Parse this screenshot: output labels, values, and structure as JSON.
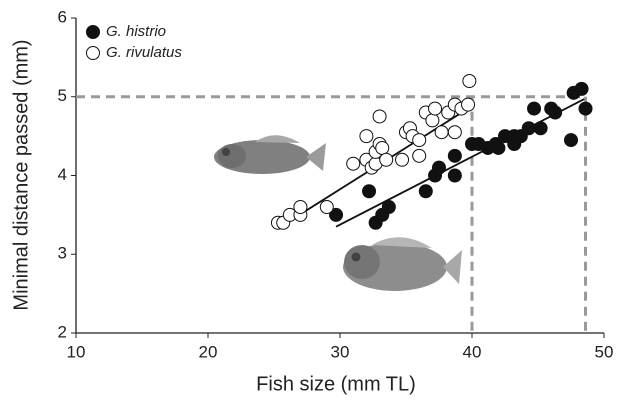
{
  "chart_data": {
    "type": "scatter",
    "xlabel": "Fish size (mm TL)",
    "ylabel": "Minimal distance passed (mm)",
    "xlim": [
      10,
      50
    ],
    "ylim": [
      2,
      6
    ],
    "xticks": [
      10,
      20,
      30,
      40,
      50
    ],
    "yticks": [
      2,
      3,
      4,
      5,
      6
    ],
    "grid": false,
    "legend": "upper left",
    "series": [
      {
        "name": "G. histrio",
        "color": "#111111",
        "filled": true,
        "x": [
          29.7,
          32.2,
          32.7,
          33.2,
          33.7,
          36.5,
          37.2,
          37.5,
          38.7,
          38.7,
          40.0,
          40.5,
          41.2,
          41.8,
          42.0,
          42.5,
          43.2,
          43.2,
          43.7,
          44.3,
          44.7,
          45.2,
          46.0,
          46.3,
          47.5,
          47.7,
          48.3,
          48.6
        ],
        "values": [
          3.5,
          3.8,
          3.4,
          3.5,
          3.6,
          3.8,
          4.0,
          4.1,
          4.0,
          4.25,
          4.4,
          4.4,
          4.35,
          4.4,
          4.35,
          4.5,
          4.4,
          4.5,
          4.5,
          4.6,
          4.85,
          4.6,
          4.85,
          4.8,
          4.45,
          5.05,
          5.1,
          4.85
        ],
        "fit": {
          "x": [
            29.7,
            48.5
          ],
          "y": [
            3.35,
            4.97
          ]
        }
      },
      {
        "name": "G. rivulatus",
        "color": "#111111",
        "filled": false,
        "x": [
          25.3,
          25.7,
          26.2,
          27.0,
          27.0,
          29.0,
          31.0,
          32.0,
          32.0,
          32.4,
          32.7,
          32.7,
          33.0,
          33.2,
          33.5,
          33.0,
          34.7,
          35.0,
          35.3,
          35.5,
          36.0,
          36.0,
          36.5,
          37.0,
          37.2,
          37.7,
          38.2,
          38.7,
          38.7,
          39.2,
          39.7,
          39.8
        ],
        "values": [
          3.4,
          3.4,
          3.5,
          3.5,
          3.6,
          3.6,
          4.15,
          4.5,
          4.2,
          4.1,
          4.15,
          4.3,
          4.4,
          4.35,
          4.2,
          4.75,
          4.2,
          4.55,
          4.6,
          4.5,
          4.45,
          4.25,
          4.8,
          4.7,
          4.85,
          4.55,
          4.8,
          4.9,
          4.55,
          4.85,
          4.9,
          5.2
        ],
        "fit": {
          "x": [
            25.5,
            39.7
          ],
          "y": [
            3.35,
            4.85
          ]
        }
      }
    ],
    "reference_lines": {
      "y": 5,
      "x": [
        40,
        48.6
      ],
      "color": "#999999"
    }
  }
}
